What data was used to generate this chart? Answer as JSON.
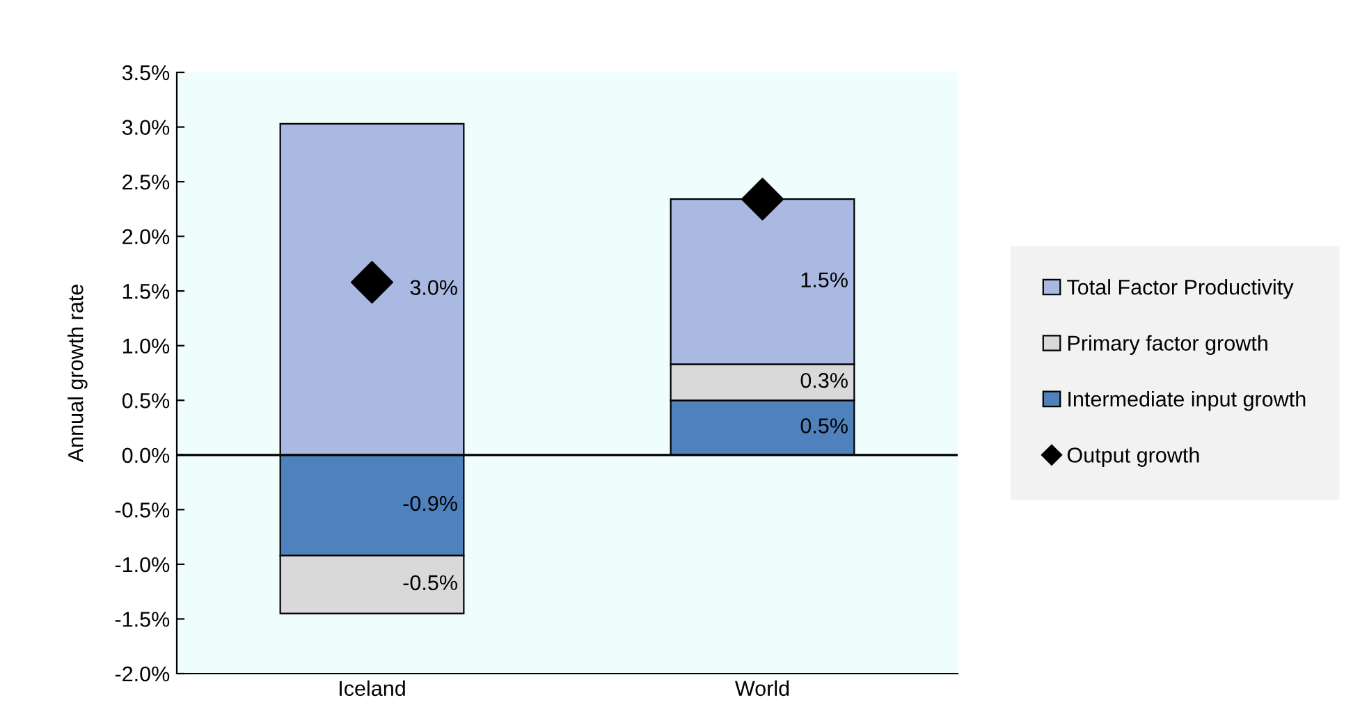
{
  "chart_data": {
    "type": "bar",
    "stacked": true,
    "ylabel": "Annual growth rate",
    "categories": [
      "Iceland",
      "World"
    ],
    "series": [
      {
        "name": "Intermediate input growth",
        "color": "#4f81bd",
        "values": [
          -0.92,
          0.5
        ],
        "value_labels": [
          "-0.9%",
          "0.5%"
        ]
      },
      {
        "name": "Primary factor growth",
        "color": "#d9d9d9",
        "values": [
          -0.53,
          0.33
        ],
        "value_labels": [
          "-0.5%",
          "0.3%"
        ]
      },
      {
        "name": "Total Factor Productivity",
        "color": "#a9b9e2",
        "values": [
          3.03,
          1.51
        ],
        "value_labels": [
          "3.0%",
          "1.5%"
        ]
      },
      {
        "name": "Output growth",
        "type": "scatter",
        "marker": "diamond",
        "color": "#000000",
        "values": [
          1.58,
          2.34
        ]
      }
    ],
    "ylim": [
      -2.0,
      3.5
    ],
    "yticks": [
      {
        "value": -2.0,
        "label": "-2.0%"
      },
      {
        "value": -1.5,
        "label": "-1.5%"
      },
      {
        "value": -1.0,
        "label": "-1.0%"
      },
      {
        "value": -0.5,
        "label": "-0.5%"
      },
      {
        "value": 0.0,
        "label": "0.0%"
      },
      {
        "value": 0.5,
        "label": "0.5%"
      },
      {
        "value": 1.0,
        "label": "1.0%"
      },
      {
        "value": 1.5,
        "label": "1.5%"
      },
      {
        "value": 2.0,
        "label": "2.0%"
      },
      {
        "value": 2.5,
        "label": "2.5%"
      },
      {
        "value": 3.0,
        "label": "3.0%"
      },
      {
        "value": 3.5,
        "label": "3.5%"
      }
    ],
    "ref_lines": [
      {
        "axis": "y",
        "value": 0,
        "color": "#000000"
      }
    ],
    "grid": false,
    "legend": "right"
  }
}
